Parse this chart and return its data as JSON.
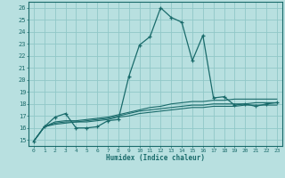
{
  "xlabel": "Humidex (Indice chaleur)",
  "ylabel": "",
  "background_color": "#b8e0e0",
  "grid_color": "#90c8c8",
  "line_color": "#1a6b6b",
  "xlim": [
    -0.5,
    23.5
  ],
  "ylim": [
    14.5,
    26.5
  ],
  "xticks": [
    0,
    1,
    2,
    3,
    4,
    5,
    6,
    7,
    8,
    9,
    10,
    11,
    12,
    13,
    14,
    15,
    16,
    17,
    18,
    19,
    20,
    21,
    22,
    23
  ],
  "yticks": [
    15,
    16,
    17,
    18,
    19,
    20,
    21,
    22,
    23,
    24,
    25,
    26
  ],
  "series": [
    {
      "x": [
        0,
        1,
        2,
        3,
        4,
        5,
        6,
        7,
        8,
        9,
        10,
        11,
        12,
        13,
        14,
        15,
        16,
        17,
        18,
        19,
        20,
        21,
        22,
        23
      ],
      "y": [
        14.9,
        16.1,
        16.9,
        17.2,
        16.0,
        16.0,
        16.1,
        16.6,
        16.7,
        20.3,
        22.9,
        23.6,
        26.0,
        25.2,
        24.8,
        21.6,
        23.7,
        18.5,
        18.6,
        17.9,
        18.0,
        17.8,
        18.0,
        18.1
      ],
      "marker": true
    },
    {
      "x": [
        0,
        1,
        2,
        3,
        4,
        5,
        6,
        7,
        8,
        9,
        10,
        11,
        12,
        13,
        14,
        15,
        16,
        17,
        18,
        19,
        20,
        21,
        22,
        23
      ],
      "y": [
        14.9,
        16.1,
        16.5,
        16.6,
        16.6,
        16.7,
        16.8,
        16.9,
        17.1,
        17.3,
        17.5,
        17.7,
        17.8,
        18.0,
        18.1,
        18.2,
        18.2,
        18.3,
        18.3,
        18.4,
        18.4,
        18.4,
        18.4,
        18.4
      ],
      "marker": false
    },
    {
      "x": [
        0,
        1,
        2,
        3,
        4,
        5,
        6,
        7,
        8,
        9,
        10,
        11,
        12,
        13,
        14,
        15,
        16,
        17,
        18,
        19,
        20,
        21,
        22,
        23
      ],
      "y": [
        14.9,
        16.1,
        16.4,
        16.5,
        16.5,
        16.6,
        16.7,
        16.8,
        17.0,
        17.2,
        17.4,
        17.5,
        17.6,
        17.7,
        17.8,
        17.9,
        17.9,
        18.0,
        18.0,
        18.0,
        18.0,
        18.1,
        18.1,
        18.1
      ],
      "marker": false
    },
    {
      "x": [
        0,
        1,
        2,
        3,
        4,
        5,
        6,
        7,
        8,
        9,
        10,
        11,
        12,
        13,
        14,
        15,
        16,
        17,
        18,
        19,
        20,
        21,
        22,
        23
      ],
      "y": [
        14.9,
        16.1,
        16.3,
        16.4,
        16.5,
        16.5,
        16.6,
        16.7,
        16.9,
        17.0,
        17.2,
        17.3,
        17.4,
        17.5,
        17.6,
        17.7,
        17.7,
        17.8,
        17.8,
        17.8,
        17.9,
        17.9,
        17.9,
        17.9
      ],
      "marker": false
    }
  ]
}
